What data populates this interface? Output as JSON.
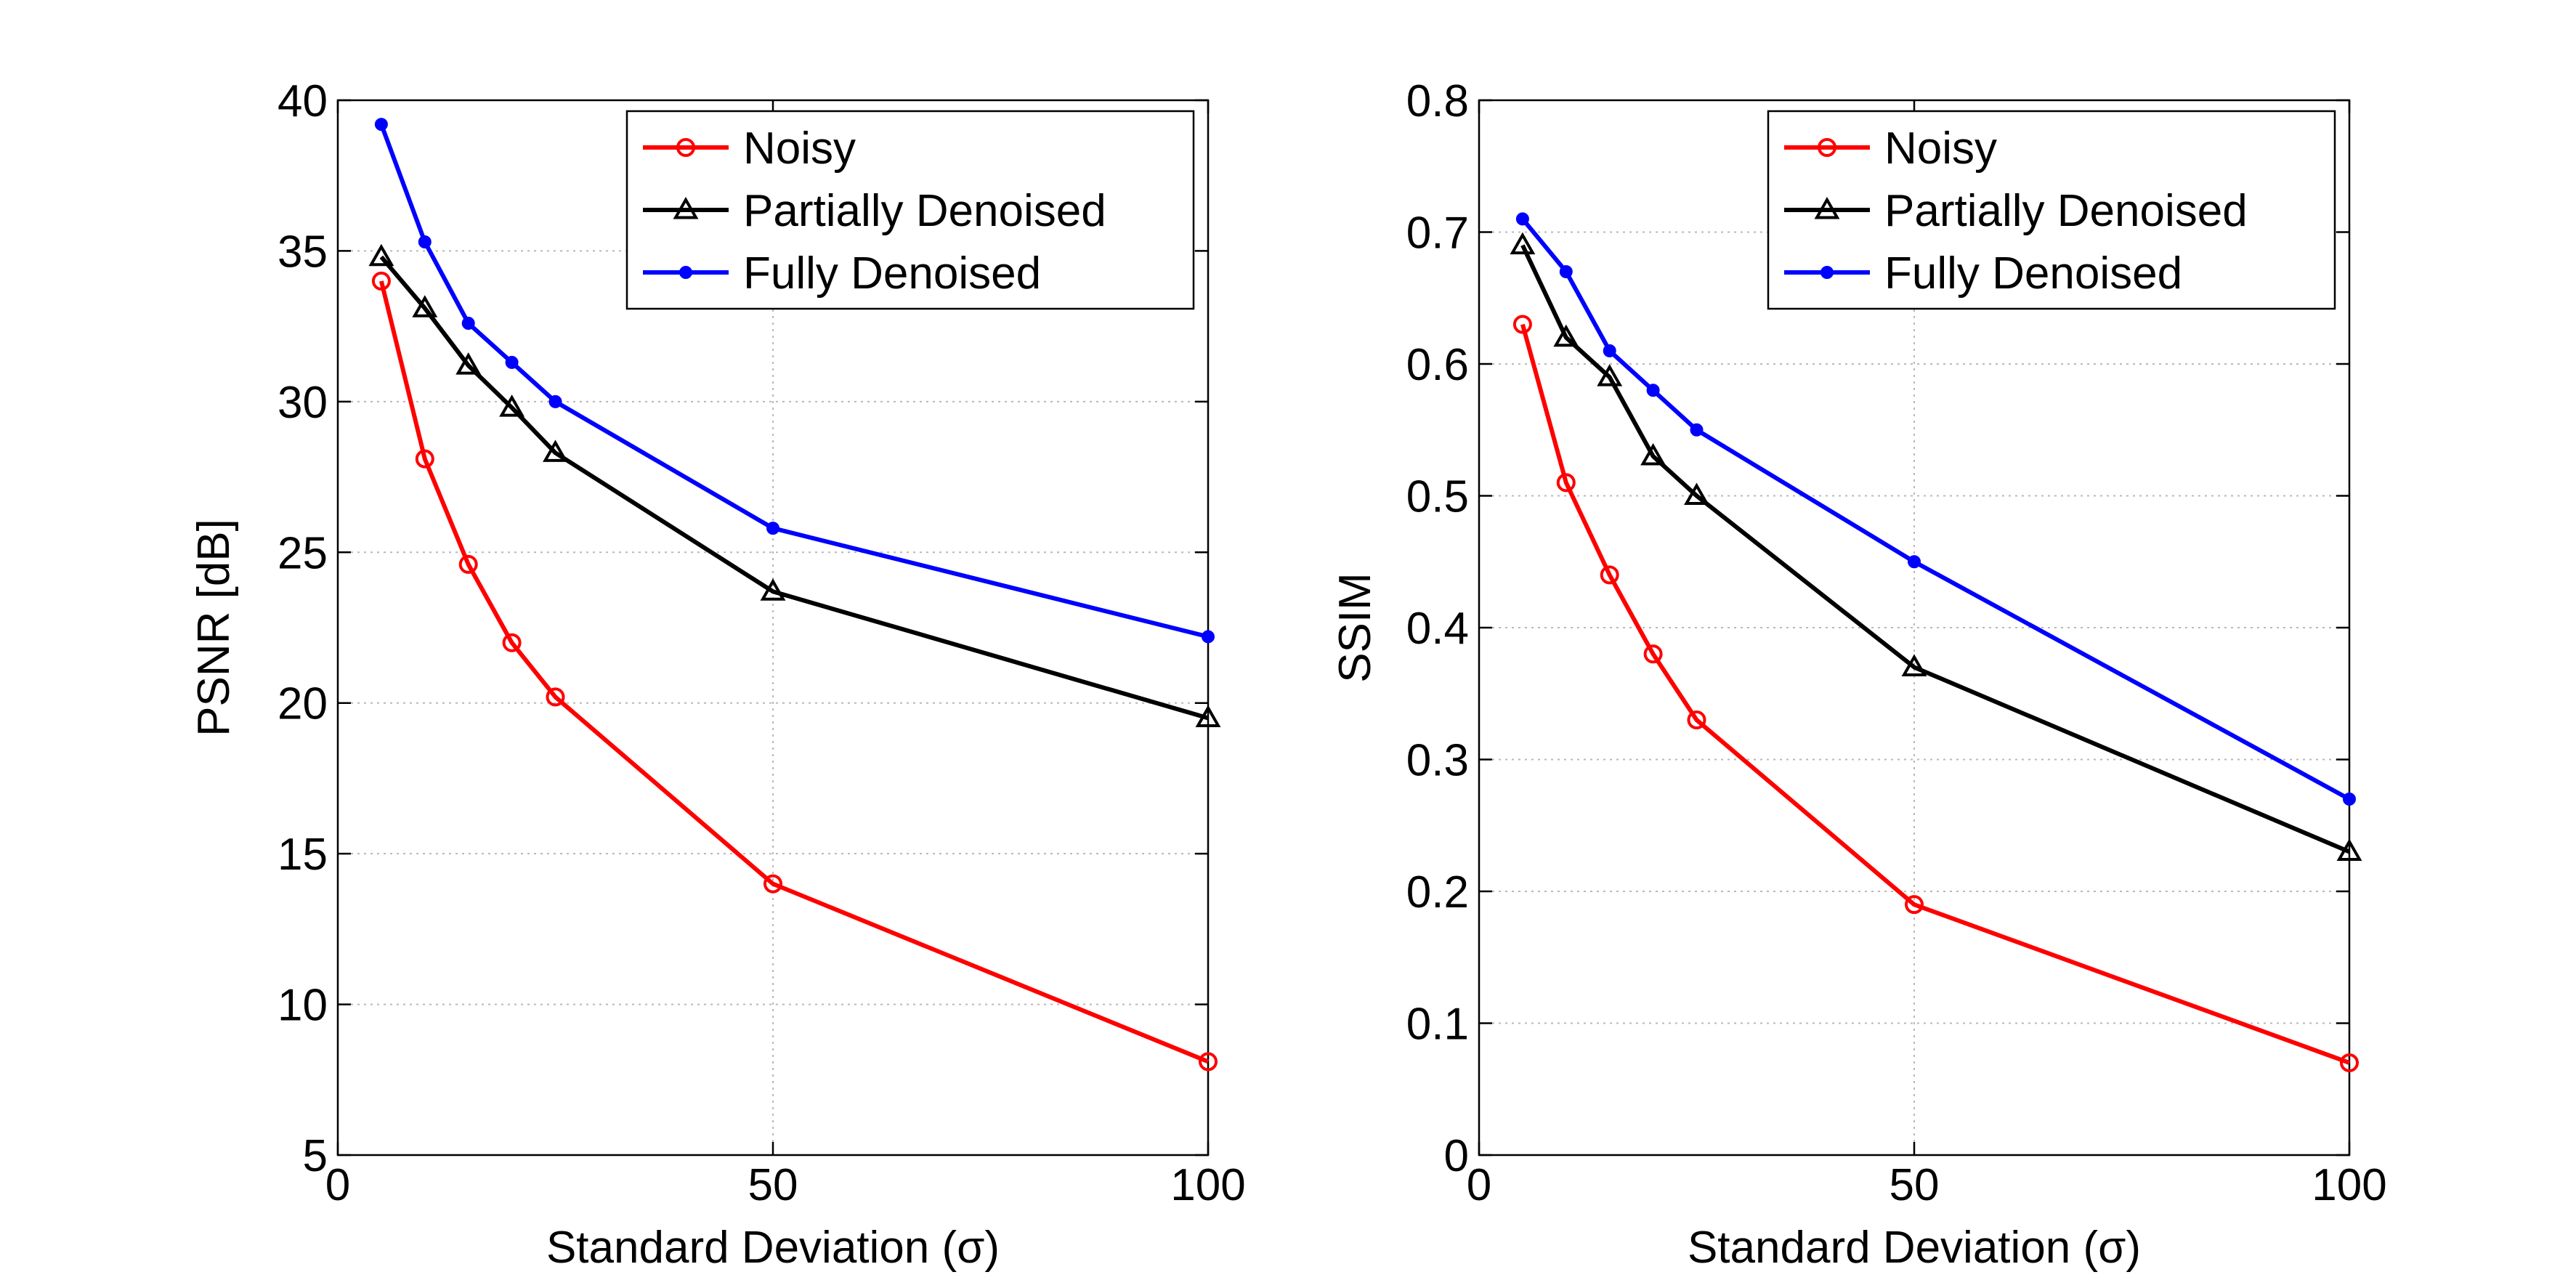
{
  "chart_data": [
    {
      "type": "line",
      "title": "",
      "xlabel": "Standard Deviation (σ)",
      "ylabel": "PSNR [dB]",
      "xlim": [
        0,
        100
      ],
      "ylim": [
        5,
        40
      ],
      "xticks": [
        0,
        50,
        100
      ],
      "yticks": [
        5,
        10,
        15,
        20,
        25,
        30,
        35,
        40
      ],
      "grid": true,
      "legend_position": "top-right",
      "x": [
        5,
        10,
        15,
        20,
        25,
        50,
        100
      ],
      "series": [
        {
          "name": "Noisy",
          "color": "#ff0000",
          "marker": "circle",
          "values": [
            34.0,
            28.1,
            24.6,
            22.0,
            20.2,
            14.0,
            8.1
          ]
        },
        {
          "name": "Partially Denoised",
          "color": "#000000",
          "marker": "triangle",
          "values": [
            34.8,
            33.1,
            31.2,
            29.8,
            28.3,
            23.7,
            19.5
          ]
        },
        {
          "name": "Fully Denoised",
          "color": "#0000ff",
          "marker": "dot",
          "values": [
            39.2,
            35.3,
            32.6,
            31.3,
            30.0,
            25.8,
            22.2
          ]
        }
      ]
    },
    {
      "type": "line",
      "title": "",
      "xlabel": "Standard Deviation (σ)",
      "ylabel": "SSIM",
      "xlim": [
        0,
        100
      ],
      "ylim": [
        0,
        0.8
      ],
      "xticks": [
        0,
        50,
        100
      ],
      "yticks": [
        0,
        0.1,
        0.2,
        0.3,
        0.4,
        0.5,
        0.6,
        0.7,
        0.8
      ],
      "grid": true,
      "legend_position": "top-right",
      "x": [
        5,
        10,
        15,
        20,
        25,
        50,
        100
      ],
      "series": [
        {
          "name": "Noisy",
          "color": "#ff0000",
          "marker": "circle",
          "values": [
            0.63,
            0.51,
            0.44,
            0.38,
            0.33,
            0.19,
            0.07
          ]
        },
        {
          "name": "Partially Denoised",
          "color": "#000000",
          "marker": "triangle",
          "values": [
            0.69,
            0.62,
            0.59,
            0.53,
            0.5,
            0.37,
            0.23
          ]
        },
        {
          "name": "Fully Denoised",
          "color": "#0000ff",
          "marker": "dot",
          "values": [
            0.71,
            0.67,
            0.61,
            0.58,
            0.55,
            0.45,
            0.27
          ]
        }
      ]
    }
  ]
}
